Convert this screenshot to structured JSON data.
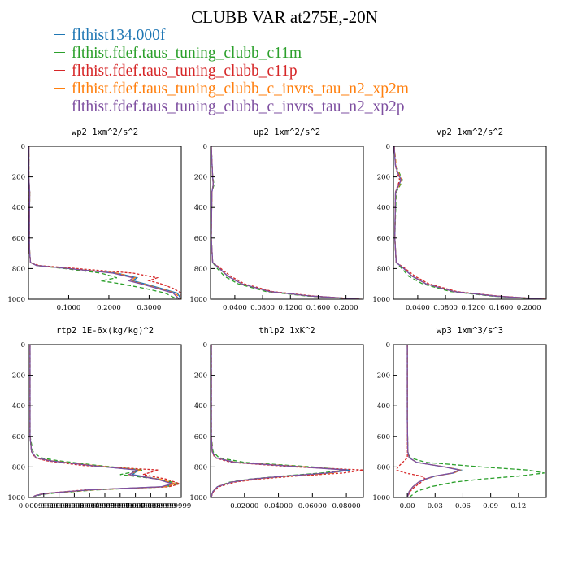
{
  "title": "CLUBB VAR at275E,-20N",
  "legend": [
    {
      "label": "flthist134.000f",
      "color": "#1f77b4"
    },
    {
      "label": "flthist.fdef.taus_tuning_clubb_c11m",
      "color": "#2ca02c"
    },
    {
      "label": "flthist.fdef.taus_tuning_clubb_c11p",
      "color": "#d62728"
    },
    {
      "label": "flthist.fdef.taus_tuning_clubb_c_invrs_tau_n2_xp2m",
      "color": "#ff7f0e"
    },
    {
      "label": "flthist.fdef.taus_tuning_clubb_c_invrs_tau_n2_xp2p",
      "color": "#7e4fa0"
    }
  ],
  "chart_data": [
    {
      "type": "line",
      "title": "wp2  1xm^2/s^2",
      "xlim": [
        0,
        0.38
      ],
      "ylim": [
        1000,
        0
      ],
      "xticks": [
        0.1,
        0.2,
        0.3
      ],
      "xtick_labels": [
        "0.1000",
        "0.2000",
        "0.3000"
      ],
      "yticks": [
        0,
        200,
        400,
        600,
        800,
        1000
      ],
      "ytick_labels": [
        "0",
        "200",
        "400",
        "600",
        "800",
        "1000"
      ],
      "y": [
        0,
        200,
        300,
        600,
        700,
        760,
        780,
        800,
        830,
        860,
        880,
        900,
        930,
        960,
        1000
      ],
      "series": [
        {
          "values": [
            0.001,
            0.001,
            0.003,
            0.002,
            0.003,
            0.005,
            0.02,
            0.1,
            0.22,
            0.27,
            0.26,
            0.29,
            0.33,
            0.37,
            0.38
          ]
        },
        {
          "values": [
            0.001,
            0.001,
            0.003,
            0.002,
            0.003,
            0.005,
            0.02,
            0.09,
            0.18,
            0.22,
            0.18,
            0.23,
            0.29,
            0.34,
            0.37
          ]
        },
        {
          "values": [
            0.001,
            0.001,
            0.003,
            0.002,
            0.003,
            0.005,
            0.025,
            0.12,
            0.26,
            0.32,
            0.3,
            0.33,
            0.36,
            0.38,
            0.38
          ]
        },
        {
          "values": [
            0.001,
            0.001,
            0.003,
            0.002,
            0.003,
            0.005,
            0.02,
            0.1,
            0.22,
            0.265,
            0.255,
            0.285,
            0.325,
            0.365,
            0.38
          ]
        },
        {
          "values": [
            0.001,
            0.001,
            0.003,
            0.002,
            0.003,
            0.005,
            0.02,
            0.1,
            0.21,
            0.26,
            0.25,
            0.28,
            0.32,
            0.36,
            0.375
          ]
        }
      ]
    },
    {
      "type": "line",
      "title": "up2  1xm^2/s^2",
      "xlim": [
        0.005,
        0.225
      ],
      "ylim": [
        1000,
        0
      ],
      "xticks": [
        0.04,
        0.08,
        0.12,
        0.16,
        0.2
      ],
      "xtick_labels": [
        "0.0400",
        "0.0800",
        "0.1200",
        "0.1600",
        "0.2000"
      ],
      "yticks": [
        0,
        200,
        400,
        600,
        800,
        1000
      ],
      "ytick_labels": [
        "0",
        "200",
        "400",
        "600",
        "800",
        "1000"
      ],
      "y": [
        0,
        200,
        250,
        300,
        600,
        760,
        800,
        850,
        900,
        950,
        980,
        1000
      ],
      "series": [
        {
          "values": [
            0.006,
            0.008,
            0.009,
            0.007,
            0.006,
            0.008,
            0.018,
            0.03,
            0.05,
            0.09,
            0.15,
            0.22
          ]
        },
        {
          "values": [
            0.006,
            0.008,
            0.01,
            0.007,
            0.006,
            0.008,
            0.015,
            0.025,
            0.045,
            0.085,
            0.145,
            0.218
          ]
        },
        {
          "values": [
            0.006,
            0.008,
            0.009,
            0.007,
            0.006,
            0.008,
            0.02,
            0.034,
            0.054,
            0.094,
            0.154,
            0.222
          ]
        },
        {
          "values": [
            0.006,
            0.008,
            0.009,
            0.007,
            0.006,
            0.008,
            0.018,
            0.03,
            0.05,
            0.09,
            0.15,
            0.22
          ]
        },
        {
          "values": [
            0.006,
            0.008,
            0.009,
            0.007,
            0.006,
            0.008,
            0.018,
            0.03,
            0.05,
            0.09,
            0.15,
            0.22
          ]
        }
      ]
    },
    {
      "type": "line",
      "title": "vp2  1xm^2/s^2",
      "xlim": [
        0.005,
        0.225
      ],
      "ylim": [
        1000,
        0
      ],
      "xticks": [
        0.04,
        0.08,
        0.12,
        0.16,
        0.2
      ],
      "xtick_labels": [
        "0.0400",
        "0.0800",
        "0.1200",
        "0.1600",
        "0.2000"
      ],
      "yticks": [
        0,
        200,
        400,
        600,
        800,
        1000
      ],
      "ytick_labels": [
        "0",
        "200",
        "400",
        "600",
        "800",
        "1000"
      ],
      "y": [
        0,
        130,
        180,
        220,
        260,
        300,
        600,
        760,
        800,
        850,
        900,
        950,
        980,
        1000
      ],
      "series": [
        {
          "values": [
            0.006,
            0.008,
            0.012,
            0.016,
            0.012,
            0.008,
            0.007,
            0.009,
            0.02,
            0.032,
            0.052,
            0.092,
            0.152,
            0.222
          ]
        },
        {
          "values": [
            0.006,
            0.009,
            0.014,
            0.018,
            0.014,
            0.009,
            0.007,
            0.009,
            0.017,
            0.027,
            0.047,
            0.087,
            0.147,
            0.218
          ]
        },
        {
          "values": [
            0.006,
            0.008,
            0.011,
            0.014,
            0.011,
            0.008,
            0.007,
            0.009,
            0.022,
            0.036,
            0.056,
            0.096,
            0.156,
            0.224
          ]
        },
        {
          "values": [
            0.006,
            0.009,
            0.013,
            0.017,
            0.013,
            0.008,
            0.007,
            0.009,
            0.02,
            0.032,
            0.052,
            0.092,
            0.152,
            0.222
          ]
        },
        {
          "values": [
            0.006,
            0.008,
            0.012,
            0.016,
            0.012,
            0.008,
            0.007,
            0.009,
            0.02,
            0.032,
            0.052,
            0.092,
            0.152,
            0.222
          ]
        }
      ]
    },
    {
      "type": "line",
      "title": "rtp2  1E-6x(kg/kg)^2",
      "xlim": [
        0,
        0.01
      ],
      "ylim": [
        1000,
        0
      ],
      "xticks": [
        0.0009999,
        0.002,
        0.003,
        0.004,
        0.005,
        0.006,
        0.007,
        0.008,
        0.009
      ],
      "xtick_labels": [
        "0.0009999999",
        "0.0020000000",
        "0.0030000000",
        "0.0039999999",
        "0.0049999999",
        "0.0059999999",
        "0.0070000000",
        "0.0079999999",
        "0.0089999999"
      ],
      "yticks": [
        0,
        200,
        400,
        600,
        800,
        1000
      ],
      "ytick_labels": [
        "0",
        "200",
        "400",
        "600",
        "800",
        "1000"
      ],
      "y": [
        0,
        600,
        700,
        740,
        760,
        790,
        820,
        850,
        880,
        910,
        930,
        950,
        970,
        980,
        990,
        1000
      ],
      "series": [
        {
          "values": [
            0.0001,
            0.0001,
            0.0002,
            0.0005,
            0.0015,
            0.004,
            0.0072,
            0.0068,
            0.0085,
            0.0095,
            0.0088,
            0.004,
            0.0015,
            0.0008,
            0.0004,
            0.0003
          ]
        },
        {
          "values": [
            0.0001,
            0.0001,
            0.0003,
            0.0008,
            0.002,
            0.0045,
            0.0075,
            0.006,
            0.0085,
            0.0099,
            0.009,
            0.0045,
            0.0018,
            0.0009,
            0.0005,
            0.0003
          ]
        },
        {
          "values": [
            0.0001,
            0.0001,
            0.0002,
            0.0004,
            0.0012,
            0.0035,
            0.0085,
            0.0075,
            0.009,
            0.0099,
            0.0092,
            0.0038,
            0.0014,
            0.0007,
            0.0004,
            0.0003
          ]
        },
        {
          "values": [
            0.0001,
            0.0001,
            0.0002,
            0.0005,
            0.0015,
            0.0042,
            0.0074,
            0.0065,
            0.0086,
            0.0096,
            0.0089,
            0.0042,
            0.0016,
            0.0008,
            0.0004,
            0.0003
          ]
        },
        {
          "values": [
            0.0001,
            0.0001,
            0.0002,
            0.0005,
            0.0014,
            0.004,
            0.0071,
            0.0066,
            0.0084,
            0.0094,
            0.0087,
            0.004,
            0.0015,
            0.0008,
            0.0004,
            0.0003
          ]
        }
      ]
    },
    {
      "type": "line",
      "title": "thlp2  1xK^2",
      "xlim": [
        0,
        0.09
      ],
      "ylim": [
        1000,
        0
      ],
      "xticks": [
        0.02,
        0.04,
        0.06,
        0.08
      ],
      "xtick_labels": [
        "0.02000",
        "0.04000",
        "0.06000",
        "0.08000"
      ],
      "yticks": [
        0,
        200,
        400,
        600,
        800,
        1000
      ],
      "ytick_labels": [
        "0",
        "200",
        "400",
        "600",
        "800",
        "1000"
      ],
      "y": [
        0,
        600,
        700,
        740,
        770,
        800,
        820,
        840,
        860,
        880,
        900,
        930,
        960,
        980,
        1000
      ],
      "series": [
        {
          "values": [
            0.0005,
            0.0005,
            0.001,
            0.003,
            0.015,
            0.055,
            0.082,
            0.07,
            0.045,
            0.025,
            0.012,
            0.004,
            0.0015,
            0.0008,
            0.0005
          ]
        },
        {
          "values": [
            0.0005,
            0.0005,
            0.0015,
            0.005,
            0.02,
            0.06,
            0.08,
            0.065,
            0.042,
            0.023,
            0.011,
            0.004,
            0.0015,
            0.0008,
            0.0005
          ]
        },
        {
          "values": [
            0.0005,
            0.0005,
            0.001,
            0.0025,
            0.012,
            0.05,
            0.09,
            0.078,
            0.05,
            0.028,
            0.014,
            0.005,
            0.0018,
            0.0009,
            0.0005
          ]
        },
        {
          "values": [
            0.0005,
            0.0005,
            0.001,
            0.003,
            0.015,
            0.057,
            0.078,
            0.072,
            0.046,
            0.025,
            0.012,
            0.004,
            0.0015,
            0.0008,
            0.0005
          ]
        },
        {
          "values": [
            0.0005,
            0.0005,
            0.001,
            0.003,
            0.014,
            0.054,
            0.08,
            0.069,
            0.044,
            0.024,
            0.012,
            0.004,
            0.0015,
            0.0008,
            0.0005
          ]
        }
      ]
    },
    {
      "type": "line",
      "title": "wp3  1xm^3/s^3",
      "xlim": [
        -0.015,
        0.15
      ],
      "ylim": [
        1000,
        0
      ],
      "xticks": [
        0,
        0.03,
        0.06,
        0.09,
        0.12
      ],
      "xtick_labels": [
        "0.00",
        "0.03",
        "0.06",
        "0.09",
        "0.12"
      ],
      "yticks": [
        0,
        200,
        400,
        600,
        800,
        1000
      ],
      "ytick_labels": [
        "0",
        "200",
        "400",
        "600",
        "800",
        "1000"
      ],
      "y": [
        0,
        500,
        700,
        740,
        770,
        800,
        820,
        840,
        860,
        880,
        900,
        930,
        960,
        1000
      ],
      "series": [
        {
          "values": [
            0.0,
            0.0,
            0.0005,
            0.002,
            0.01,
            0.04,
            0.058,
            0.05,
            0.03,
            0.02,
            0.012,
            0.006,
            0.002,
            0.0
          ]
        },
        {
          "values": [
            0.0,
            0.0,
            0.0005,
            0.003,
            0.02,
            0.08,
            0.13,
            0.148,
            0.12,
            0.08,
            0.05,
            0.025,
            0.01,
            0.002
          ]
        },
        {
          "values": [
            0.0,
            0.0,
            0.0002,
            0.0,
            -0.005,
            -0.01,
            -0.012,
            -0.002,
            0.015,
            0.02,
            0.015,
            0.008,
            0.003,
            0.0
          ]
        },
        {
          "values": [
            0.0,
            0.0,
            0.0005,
            0.002,
            0.01,
            0.041,
            0.057,
            0.05,
            0.03,
            0.02,
            0.012,
            0.006,
            0.002,
            0.0
          ]
        },
        {
          "values": [
            0.0,
            0.0,
            0.0005,
            0.002,
            0.01,
            0.04,
            0.056,
            0.049,
            0.029,
            0.019,
            0.012,
            0.006,
            0.002,
            0.0
          ]
        }
      ]
    }
  ]
}
